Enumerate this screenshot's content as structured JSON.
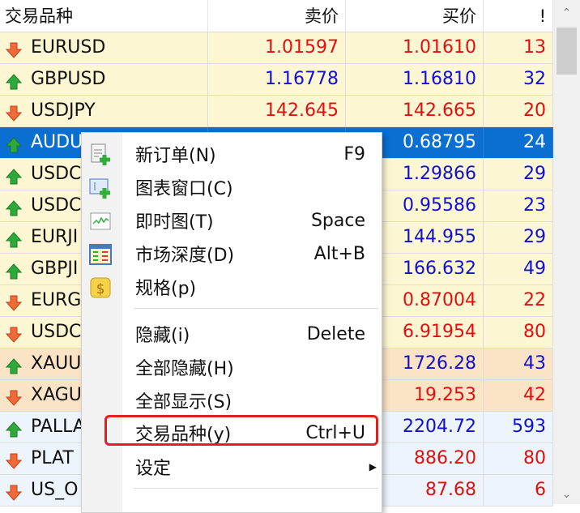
{
  "header": {
    "symbol": "交易品种",
    "bid": "卖价",
    "ask": "买价",
    "spread": "!"
  },
  "colors": {
    "up": "#1010d0",
    "down": "#e01010",
    "selected": "#0a6fd0",
    "forex_bg": "#fdf6d2",
    "metal_bg": "#fbe3c6",
    "other_bg": "#edf4fb",
    "highlight": "#e32020"
  },
  "rows": [
    {
      "symbol": "EURUSD",
      "bid": "1.01597",
      "ask": "1.01610",
      "spread": "13",
      "dir": "down",
      "group": "forex"
    },
    {
      "symbol": "GBPUSD",
      "bid": "1.16778",
      "ask": "1.16810",
      "spread": "32",
      "dir": "up",
      "group": "forex"
    },
    {
      "symbol": "USDJPY",
      "bid": "142.645",
      "ask": "142.665",
      "spread": "20",
      "dir": "down",
      "group": "forex"
    },
    {
      "symbol": "AUDU",
      "bid": "",
      "ask": "0.68795",
      "spread": "24",
      "dir": "up",
      "group": "forex",
      "selected": true
    },
    {
      "symbol": "USDC",
      "bid": "",
      "ask": "1.29866",
      "spread": "29",
      "dir": "up",
      "group": "forex"
    },
    {
      "symbol": "USDC",
      "bid": "",
      "ask": "0.95586",
      "spread": "23",
      "dir": "up",
      "group": "forex"
    },
    {
      "symbol": "EURJI",
      "bid": "",
      "ask": "144.955",
      "spread": "29",
      "dir": "up",
      "group": "forex"
    },
    {
      "symbol": "GBPJI",
      "bid": "",
      "ask": "166.632",
      "spread": "49",
      "dir": "up",
      "group": "forex"
    },
    {
      "symbol": "EURG",
      "bid": "",
      "ask": "0.87004",
      "spread": "22",
      "dir": "down",
      "group": "forex"
    },
    {
      "symbol": "USDC",
      "bid": "",
      "ask": "6.91954",
      "spread": "80",
      "dir": "down",
      "group": "forex"
    },
    {
      "symbol": "XAUU",
      "bid": "",
      "ask": "1726.28",
      "spread": "43",
      "dir": "up",
      "group": "metal"
    },
    {
      "symbol": "XAGU",
      "bid": "",
      "ask": "19.253",
      "spread": "42",
      "dir": "down",
      "group": "metal"
    },
    {
      "symbol": "PALLA",
      "bid": "",
      "ask": "2204.72",
      "spread": "593",
      "dir": "up",
      "group": "other"
    },
    {
      "symbol": "PLAT",
      "bid": "",
      "ask": "886.20",
      "spread": "80",
      "dir": "down",
      "group": "other"
    },
    {
      "symbol": "US_O",
      "bid": "",
      "ask": "87.68",
      "spread": "6",
      "dir": "down",
      "group": "other"
    }
  ],
  "menu": [
    {
      "label": "新订单(N)",
      "shortcut": "F9",
      "icon": "new-order-icon"
    },
    {
      "label": "图表窗口(C)",
      "shortcut": "",
      "icon": "chart-window-icon"
    },
    {
      "label": "即时图(T)",
      "shortcut": "Space",
      "icon": "tick-chart-icon"
    },
    {
      "label": "市场深度(D)",
      "shortcut": "Alt+B",
      "icon": "market-depth-icon"
    },
    {
      "label": "规格(p)",
      "shortcut": "",
      "icon": "specification-icon"
    },
    {
      "label": "隐藏(i)",
      "shortcut": "Delete"
    },
    {
      "label": "全部隐藏(H)",
      "shortcut": ""
    },
    {
      "label": "全部显示(S)",
      "shortcut": ""
    },
    {
      "label": "交易品种(y)",
      "shortcut": "Ctrl+U",
      "highlighted": true
    },
    {
      "label": "设定",
      "shortcut": "",
      "submenu": true
    }
  ]
}
